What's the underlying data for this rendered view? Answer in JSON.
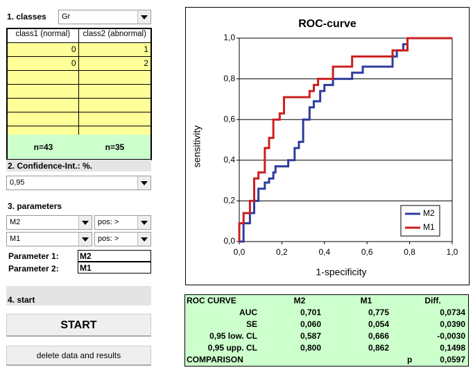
{
  "classes": {
    "label": "1. classes",
    "dropdown": "Gr",
    "headers": [
      "class1 (normal)",
      "class2 (abnormal)"
    ],
    "rows": [
      [
        "0",
        "1"
      ],
      [
        "0",
        "2"
      ]
    ],
    "counts": [
      "n=43",
      "n=35"
    ]
  },
  "confidence": {
    "label": "2. Confidence-Int.: %.",
    "dropdown": "0,95"
  },
  "parameters": {
    "label": "3. parameters",
    "selectors": [
      {
        "parameter": "M2",
        "direction": "pos: >"
      },
      {
        "parameter": "M1",
        "direction": "pos: >"
      }
    ],
    "assigned": [
      {
        "label": "Parameter 1:",
        "value": "M2"
      },
      {
        "label": "Parameter 2:",
        "value": "M1"
      }
    ]
  },
  "start": {
    "label": "4. start",
    "button": "START",
    "delete_button": "delete data and results"
  },
  "chart_data": {
    "type": "line",
    "title": "ROC-curve",
    "xlabel": "1-specificity",
    "ylabel": "sensitivity",
    "xlim": [
      0,
      1
    ],
    "ylim": [
      0,
      1
    ],
    "xticks": [
      {
        "value": 0,
        "label": "0,0"
      },
      {
        "value": 0.2,
        "label": "0,2"
      },
      {
        "value": 0.4,
        "label": "0,4"
      },
      {
        "value": 0.6,
        "label": "0,6"
      },
      {
        "value": 0.8,
        "label": "0,8"
      },
      {
        "value": 1,
        "label": "1,0"
      }
    ],
    "yticks": [
      {
        "value": 0,
        "label": "0,0"
      },
      {
        "value": 0.2,
        "label": "0,2"
      },
      {
        "value": 0.4,
        "label": "0,4"
      },
      {
        "value": 0.6,
        "label": "0,6"
      },
      {
        "value": 0.8,
        "label": "0,8"
      },
      {
        "value": 1,
        "label": "1,0"
      }
    ],
    "grid": true,
    "legend": "lower right",
    "series": [
      {
        "name": "M2",
        "color": "#2e3c9c",
        "x": [
          0,
          0.02,
          0.02,
          0.05,
          0.05,
          0.07,
          0.07,
          0.09,
          0.09,
          0.12,
          0.12,
          0.14,
          0.14,
          0.16,
          0.16,
          0.17,
          0.17,
          0.23,
          0.23,
          0.26,
          0.26,
          0.28,
          0.28,
          0.3,
          0.3,
          0.33,
          0.33,
          0.35,
          0.35,
          0.38,
          0.38,
          0.4,
          0.4,
          0.44,
          0.44,
          0.53,
          0.53,
          0.58,
          0.58,
          0.72,
          0.72,
          0.74,
          0.74,
          0.77,
          0.77,
          0.79,
          0.79,
          1
        ],
        "values": [
          0,
          0,
          0.09,
          0.09,
          0.14,
          0.14,
          0.2,
          0.2,
          0.26,
          0.26,
          0.29,
          0.29,
          0.31,
          0.31,
          0.34,
          0.34,
          0.37,
          0.37,
          0.4,
          0.4,
          0.46,
          0.46,
          0.49,
          0.49,
          0.6,
          0.6,
          0.66,
          0.66,
          0.69,
          0.69,
          0.74,
          0.74,
          0.77,
          0.77,
          0.8,
          0.8,
          0.83,
          0.83,
          0.86,
          0.86,
          0.91,
          0.91,
          0.94,
          0.94,
          0.97,
          0.97,
          1,
          1
        ]
      },
      {
        "name": "M1",
        "color": "#cc1f1f",
        "x": [
          0,
          0,
          0.02,
          0.02,
          0.05,
          0.05,
          0.07,
          0.07,
          0.09,
          0.09,
          0.12,
          0.12,
          0.14,
          0.14,
          0.16,
          0.16,
          0.19,
          0.19,
          0.21,
          0.21,
          0.33,
          0.33,
          0.35,
          0.35,
          0.37,
          0.37,
          0.44,
          0.44,
          0.53,
          0.53,
          0.72,
          0.72,
          0.79,
          0.79,
          1
        ],
        "values": [
          0,
          0.09,
          0.09,
          0.14,
          0.14,
          0.2,
          0.2,
          0.31,
          0.31,
          0.34,
          0.34,
          0.46,
          0.46,
          0.51,
          0.51,
          0.6,
          0.6,
          0.63,
          0.63,
          0.71,
          0.71,
          0.74,
          0.74,
          0.77,
          0.77,
          0.8,
          0.8,
          0.86,
          0.86,
          0.91,
          0.91,
          0.94,
          0.94,
          1,
          1
        ]
      }
    ]
  },
  "results": {
    "headers": [
      "ROC CURVE",
      "M2",
      "M1",
      "Diff."
    ],
    "rows": [
      [
        "AUC",
        "0,701",
        "0,775",
        "0,0734"
      ],
      [
        "SE",
        "0,060",
        "0,054",
        "0,0390"
      ],
      [
        "0,95 low. CL",
        "0,587",
        "0,666",
        "-0,0030"
      ],
      [
        "0,95 upp. CL",
        "0,800",
        "0,862",
        "0,1498"
      ]
    ],
    "comparison": {
      "label": "COMPARISON",
      "stat": "p",
      "value": "0,0597"
    }
  }
}
